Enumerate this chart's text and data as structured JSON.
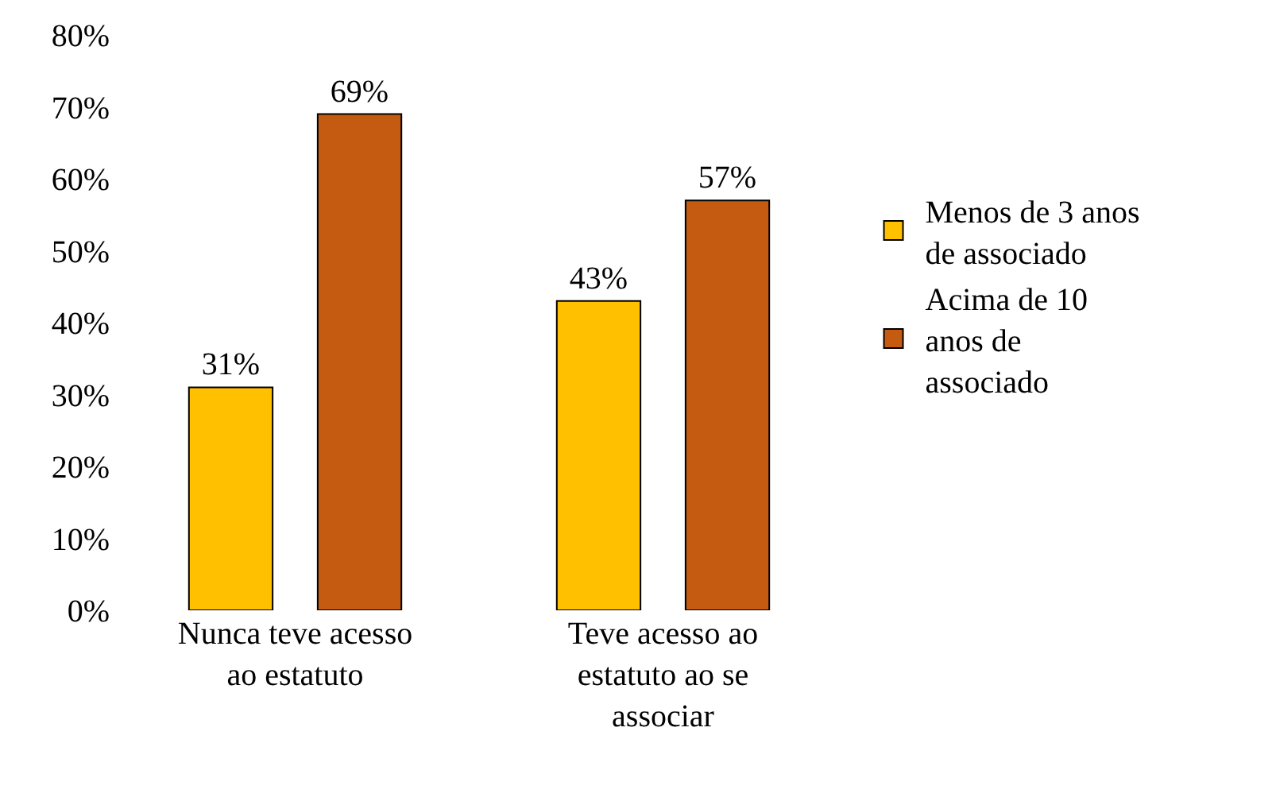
{
  "chart_data": {
    "type": "bar",
    "categories": [
      "Nunca teve acesso ao estatuto",
      "Teve acesso ao estatuto ao se associar"
    ],
    "series": [
      {
        "name": "Menos de 3 anos de associado",
        "color": "#ffc000",
        "values": [
          31,
          43
        ],
        "value_labels": [
          "31%",
          "43%"
        ]
      },
      {
        "name": "Acima de 10 anos de associado",
        "color": "#c55a11",
        "values": [
          69,
          57
        ],
        "value_labels": [
          "69%",
          "57%"
        ]
      }
    ],
    "ylim": [
      0,
      80
    ],
    "yticks": [
      {
        "value": 0,
        "label": "0%"
      },
      {
        "value": 10,
        "label": "10%"
      },
      {
        "value": 20,
        "label": "20%"
      },
      {
        "value": 30,
        "label": "30%"
      },
      {
        "value": 40,
        "label": "40%"
      },
      {
        "value": 50,
        "label": "50%"
      },
      {
        "value": 60,
        "label": "60%"
      },
      {
        "value": 70,
        "label": "70%"
      },
      {
        "value": 80,
        "label": "80%"
      }
    ],
    "grid": false,
    "legend": "right"
  }
}
